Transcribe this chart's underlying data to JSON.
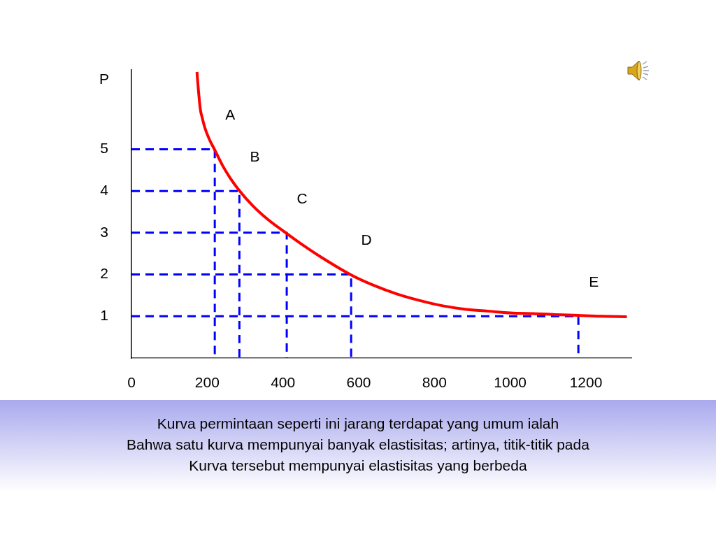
{
  "chart_data": {
    "type": "line",
    "ylabel": "P",
    "xlim": [
      0,
      1320
    ],
    "xticks": [
      0,
      200,
      400,
      600,
      800,
      1000,
      1200
    ],
    "ylim": [
      0,
      6.9
    ],
    "yticks": [
      1,
      2,
      3,
      4,
      5
    ],
    "grid": false,
    "legend": false,
    "marker": "none",
    "series": [
      {
        "color": "#ff0000",
        "line_style": "solid",
        "x": [
          173,
          176,
          182,
          187,
          194,
          205,
          219,
          240,
          260,
          284,
          320,
          360,
          404,
          447,
          500,
          582,
          640,
          699,
          760,
          822,
          880,
          945,
          1000,
          1068,
          1120,
          1179,
          1240,
          1308
        ],
        "values": [
          6.85,
          6.5,
          5.95,
          5.75,
          5.51,
          5.25,
          5.0,
          4.62,
          4.32,
          4.02,
          3.65,
          3.32,
          3.02,
          2.74,
          2.42,
          1.98,
          1.74,
          1.54,
          1.38,
          1.25,
          1.17,
          1.12,
          1.08,
          1.06,
          1.04,
          1.02,
          1.0,
          0.99
        ]
      },
      {
        "color": "#0000ff",
        "line_style": "dashed",
        "x": [
          0,
          220,
          220
        ],
        "values": [
          5,
          5,
          0
        ]
      },
      {
        "color": "#0000ff",
        "line_style": "dashed",
        "x": [
          0,
          285,
          285
        ],
        "values": [
          4,
          4,
          0
        ]
      },
      {
        "color": "#0000ff",
        "line_style": "dashed",
        "x": [
          0,
          410,
          410
        ],
        "values": [
          3,
          3,
          0
        ]
      },
      {
        "color": "#0000ff",
        "line_style": "dashed",
        "x": [
          0,
          580,
          580
        ],
        "values": [
          2,
          2,
          0
        ]
      },
      {
        "color": "#0000ff",
        "line_style": "dashed",
        "x": [
          0,
          1180,
          1180
        ],
        "values": [
          1,
          1,
          0
        ]
      }
    ],
    "annotations": [
      {
        "text": "A",
        "x": 220,
        "y": 5
      },
      {
        "text": "B",
        "x": 285,
        "y": 4
      },
      {
        "text": "C",
        "x": 410,
        "y": 3
      },
      {
        "text": "D",
        "x": 580,
        "y": 2
      },
      {
        "text": "E",
        "x": 1180,
        "y": 1
      },
      "Kurva permintaan seperti ini jarang terdapat yang umum ialah",
      "Bahwa satu kurva mempunyai banyak elastisitas; artinya, titik-titik pada",
      "Kurva tersebut mempunyai elastisitas yang berbeda"
    ]
  }
}
